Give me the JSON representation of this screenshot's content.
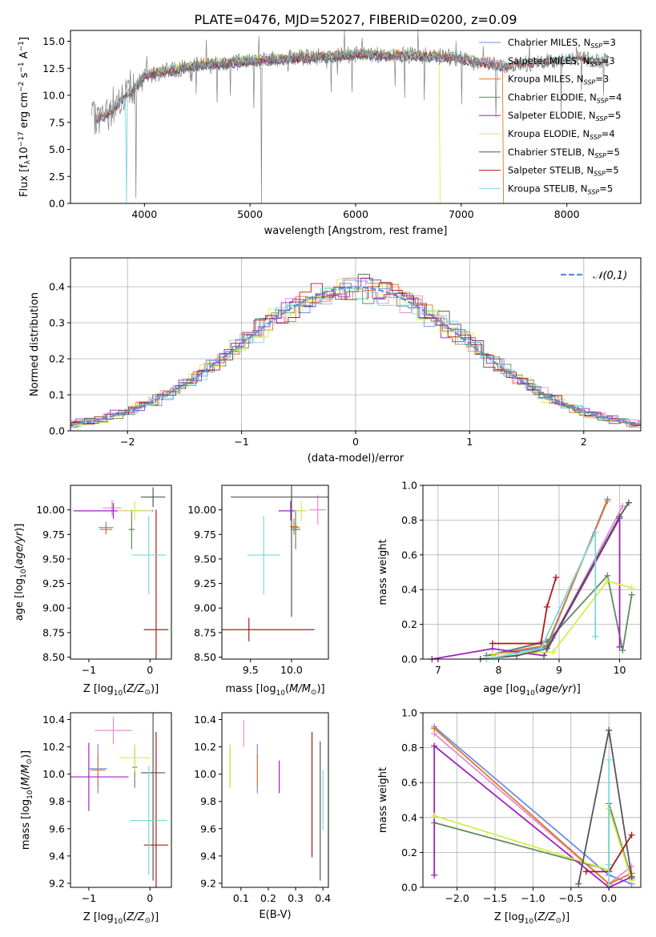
{
  "figure_title": "PLATE=0476, MJD=52027, FIBERID=0200, z=0.09",
  "colors": {
    "chabrier_miles": "#6a8ee8",
    "salpeter_miles": "#e58cd6",
    "kroupa_miles": "#e0782a",
    "chabrier_elodie": "#5f8a5f",
    "salpeter_elodie": "#a020c0",
    "kroupa_elodie": "#d8ec4a",
    "chabrier_stelib": "#555555",
    "salpeter_stelib": "#b01818",
    "kroupa_stelib": "#7ad8dc",
    "data": "#808080",
    "normal": "#5b8fd6",
    "grid": "#b0b0b0"
  },
  "chart_data": [
    {
      "id": "spectrum",
      "type": "line",
      "title": "PLATE=0476, MJD=52027, FIBERID=0200, z=0.09",
      "xlabel": "wavelength [Angstrom, rest frame]",
      "ylabel": "Flux [f_λ10^-17 erg cm^-2 s^-1 A^-1]",
      "xlim": [
        3300,
        8700
      ],
      "ylim": [
        0,
        16
      ],
      "xticks": [
        4000,
        5000,
        6000,
        7000,
        8000
      ],
      "yticks": [
        0.0,
        2.5,
        5.0,
        7.5,
        10.0,
        12.5,
        15.0
      ],
      "grid": false,
      "legend_position": "right",
      "continuum": {
        "x": [
          3500,
          3600,
          3700,
          3800,
          3900,
          4000,
          4200,
          4500,
          4800,
          5000,
          5200,
          5500,
          5800,
          6000,
          6200,
          6500,
          6800,
          7000,
          7200,
          7400,
          7600,
          7800,
          8000,
          8200,
          8400
        ],
        "y": [
          7.8,
          8.0,
          8.6,
          9.8,
          10.5,
          11.8,
          12.2,
          12.8,
          13.0,
          13.2,
          13.3,
          13.5,
          13.6,
          13.8,
          13.7,
          13.7,
          13.6,
          13.4,
          13.0,
          12.7,
          12.9,
          13.1,
          13.3,
          13.3,
          13.2
        ]
      },
      "legend": [
        {
          "label": "Chabrier MILES",
          "n": "3",
          "color_key": "chabrier_miles"
        },
        {
          "label": "Salpeter MILES",
          "n": "3",
          "color_key": "salpeter_miles"
        },
        {
          "label": "Kroupa MILES",
          "n": "3",
          "color_key": "kroupa_miles"
        },
        {
          "label": "Chabrier ELODIE",
          "n": "4",
          "color_key": "chabrier_elodie"
        },
        {
          "label": "Salpeter ELODIE",
          "n": "5",
          "color_key": "salpeter_elodie"
        },
        {
          "label": "Kroupa ELODIE",
          "n": "4",
          "color_key": "kroupa_elodie"
        },
        {
          "label": "Chabrier STELIB",
          "n": "5",
          "color_key": "chabrier_stelib"
        },
        {
          "label": "Salpeter STELIB",
          "n": "5",
          "color_key": "salpeter_stelib"
        },
        {
          "label": "Kroupa STELIB",
          "n": "5",
          "color_key": "kroupa_stelib"
        }
      ]
    },
    {
      "id": "residuals",
      "type": "area",
      "xlabel": "(data-model)/error",
      "ylabel": "Normed distribution",
      "xlim": [
        -2.5,
        2.5
      ],
      "ylim": [
        0,
        0.48
      ],
      "xticks": [
        -2,
        -1,
        0,
        1,
        2
      ],
      "yticks": [
        0.0,
        0.1,
        0.2,
        0.3,
        0.4
      ],
      "grid": true,
      "legend_position": "top-right",
      "legend": [
        {
          "label": "𝒩(0,1)",
          "color_key": "normal"
        }
      ],
      "bin_width": 0.1
    },
    {
      "id": "age_vs_Z",
      "type": "scatter",
      "xlabel": "Z [log10(Z/Z⊙)]",
      "ylabel": "age [log10(age/yr)]",
      "xlim": [
        -1.3,
        0.35
      ],
      "ylim": [
        8.48,
        10.25
      ],
      "xticks": [
        -1,
        0
      ],
      "yticks": [
        8.5,
        8.75,
        9.0,
        9.25,
        9.5,
        9.75,
        10.0
      ],
      "grid": false,
      "points": [
        {
          "color_key": "chabrier_miles",
          "x": -0.72,
          "y": 9.82,
          "xerr": 0.12,
          "yerr": 0.06
        },
        {
          "color_key": "salpeter_miles",
          "x": -0.62,
          "y": 10.02,
          "xerr": 0.15,
          "yerr": 0.08
        },
        {
          "color_key": "kroupa_miles",
          "x": -0.72,
          "y": 9.8,
          "xerr": 0.1,
          "yerr": 0.05
        },
        {
          "color_key": "chabrier_elodie",
          "x": -0.3,
          "y": 9.8,
          "xerr": 0.05,
          "yerr": 0.2
        },
        {
          "color_key": "salpeter_elodie",
          "x": -0.6,
          "y": 9.99,
          "xerr": 0.65,
          "yerr": 0.08
        },
        {
          "color_key": "kroupa_elodie",
          "x": -0.25,
          "y": 9.99,
          "xerr": 0.28,
          "yerr": 0.1
        },
        {
          "color_key": "chabrier_stelib",
          "x": 0.05,
          "y": 10.13,
          "xerr": 0.2,
          "yerr": 0.1
        },
        {
          "color_key": "salpeter_stelib",
          "x": 0.1,
          "y": 8.78,
          "xerr": 0.2,
          "yerr": 1.22
        },
        {
          "color_key": "kroupa_stelib",
          "x": -0.02,
          "y": 9.54,
          "xerr": 0.28,
          "yerr": 0.4
        }
      ]
    },
    {
      "id": "age_vs_mass",
      "type": "scatter",
      "xlabel": "mass [log10(M/M⊙)]",
      "ylabel": "",
      "xlim": [
        9.15,
        10.45
      ],
      "ylim": [
        8.48,
        10.25
      ],
      "xticks": [
        9.5,
        10.0
      ],
      "yticks": [
        8.5,
        8.75,
        9.0,
        9.25,
        9.5,
        9.75,
        10.0
      ],
      "grid": false,
      "points": [
        {
          "color_key": "chabrier_miles",
          "x": 10.05,
          "y": 9.82,
          "xerr": 0.05,
          "yerr": 0.05
        },
        {
          "color_key": "salpeter_miles",
          "x": 10.32,
          "y": 10.0,
          "xerr": 0.1,
          "yerr": 0.15
        },
        {
          "color_key": "kroupa_miles",
          "x": 10.03,
          "y": 9.83,
          "xerr": 0.05,
          "yerr": 0.08
        },
        {
          "color_key": "chabrier_elodie",
          "x": 10.05,
          "y": 9.8,
          "xerr": 0.06,
          "yerr": 0.2
        },
        {
          "color_key": "salpeter_elodie",
          "x": 9.99,
          "y": 9.99,
          "xerr": 0.15,
          "yerr": 0.1
        },
        {
          "color_key": "kroupa_elodie",
          "x": 10.12,
          "y": 9.99,
          "xerr": 0.08,
          "yerr": 0.1
        },
        {
          "color_key": "chabrier_stelib",
          "x": 10.0,
          "y": 10.13,
          "xerr": 0.74,
          "yerr": 1.22
        },
        {
          "color_key": "salpeter_stelib",
          "x": 9.48,
          "y": 8.78,
          "xerr": 0.8,
          "yerr": 0.12
        },
        {
          "color_key": "kroupa_stelib",
          "x": 9.66,
          "y": 9.54,
          "xerr": 0.2,
          "yerr": 0.4
        }
      ]
    },
    {
      "id": "weight_vs_age",
      "type": "line",
      "xlabel": "age [log10(age/yr)]",
      "ylabel": "mass weight",
      "xlim": [
        6.75,
        10.35
      ],
      "ylim": [
        0,
        1.0
      ],
      "xticks": [
        7,
        8,
        9,
        10
      ],
      "yticks": [
        0.0,
        0.2,
        0.4,
        0.6,
        0.8,
        1.0
      ],
      "grid": true,
      "series": [
        {
          "color_key": "chabrier_miles",
          "x": [
            7.8,
            8.8,
            9.8
          ],
          "y": [
            0.02,
            0.07,
            0.92
          ]
        },
        {
          "color_key": "salpeter_miles",
          "x": [
            7.9,
            8.9,
            10.05
          ],
          "y": [
            0.02,
            0.12,
            0.88
          ]
        },
        {
          "color_key": "kroupa_miles",
          "x": [
            7.8,
            8.8,
            9.8
          ],
          "y": [
            0.02,
            0.08,
            0.91
          ]
        },
        {
          "color_key": "chabrier_elodie",
          "x": [
            7.8,
            8.8,
            9.8,
            10.05,
            10.2
          ],
          "y": [
            0.02,
            0.1,
            0.48,
            0.05,
            0.37
          ]
        },
        {
          "color_key": "salpeter_elodie",
          "x": [
            6.9,
            7.9,
            8.75,
            10.0,
            10.0
          ],
          "y": [
            0.0,
            0.06,
            0.02,
            0.81,
            0.07
          ]
        },
        {
          "color_key": "kroupa_elodie",
          "x": [
            7.9,
            8.9,
            9.8,
            10.2
          ],
          "y": [
            0.03,
            0.04,
            0.45,
            0.41
          ]
        },
        {
          "color_key": "chabrier_stelib",
          "x": [
            7.7,
            8.3,
            8.8,
            10.0,
            10.15
          ],
          "y": [
            0.0,
            0.02,
            0.06,
            0.82,
            0.9
          ]
        },
        {
          "color_key": "salpeter_stelib",
          "x": [
            7.9,
            8.7,
            8.8,
            8.95
          ],
          "y": [
            0.09,
            0.09,
            0.3,
            0.47
          ]
        },
        {
          "color_key": "kroupa_stelib",
          "x": [
            7.8,
            8.7,
            9.6,
            9.6
          ],
          "y": [
            0.0,
            0.06,
            0.73,
            0.13
          ]
        }
      ]
    },
    {
      "id": "mass_vs_Z",
      "type": "scatter",
      "xlabel": "Z [log10(Z/Z⊙)]",
      "ylabel": "mass [log10(M/M⊙)]",
      "xlim": [
        -1.3,
        0.35
      ],
      "ylim": [
        9.17,
        10.45
      ],
      "xticks": [
        -1,
        0
      ],
      "yticks": [
        9.2,
        9.4,
        9.6,
        9.8,
        10.0,
        10.2,
        10.4
      ],
      "grid": false,
      "points": [
        {
          "color_key": "chabrier_miles",
          "x": -0.85,
          "y": 10.04,
          "xerr": 0.15,
          "yerr": 0.18
        },
        {
          "color_key": "salpeter_miles",
          "x": -0.6,
          "y": 10.32,
          "xerr": 0.3,
          "yerr": 0.1
        },
        {
          "color_key": "kroupa_miles",
          "x": -0.85,
          "y": 10.03,
          "xerr": 0.12,
          "yerr": 0.12
        },
        {
          "color_key": "chabrier_elodie",
          "x": -0.25,
          "y": 10.05,
          "xerr": 0.04,
          "yerr": 0.15
        },
        {
          "color_key": "salpeter_elodie",
          "x": -1.0,
          "y": 9.98,
          "xerr": 0.65,
          "yerr": 0.25
        },
        {
          "color_key": "kroupa_elodie",
          "x": -0.25,
          "y": 10.12,
          "xerr": 0.25,
          "yerr": 0.1
        },
        {
          "color_key": "chabrier_stelib",
          "x": 0.05,
          "y": 10.01,
          "xerr": 0.2,
          "yerr": 0.79
        },
        {
          "color_key": "salpeter_stelib",
          "x": 0.1,
          "y": 9.48,
          "xerr": 0.2,
          "yerr": 0.83
        },
        {
          "color_key": "kroupa_stelib",
          "x": -0.02,
          "y": 9.66,
          "xerr": 0.3,
          "yerr": 0.4
        }
      ]
    },
    {
      "id": "mass_vs_ebv",
      "type": "scatter",
      "xlabel": "E(B-V)",
      "ylabel": "",
      "xlim": [
        0.03,
        0.42
      ],
      "ylim": [
        9.17,
        10.45
      ],
      "xticks": [
        0.1,
        0.2,
        0.3,
        0.4
      ],
      "yticks": [
        9.2,
        9.4,
        9.6,
        9.8,
        10.0,
        10.2,
        10.4
      ],
      "grid": false,
      "points": [
        {
          "color_key": "chabrier_miles",
          "x": 0.16,
          "y": 10.04,
          "xerr": 0,
          "yerr": 0.18
        },
        {
          "color_key": "salpeter_miles",
          "x": 0.11,
          "y": 10.3,
          "xerr": 0,
          "yerr": 0.1
        },
        {
          "color_key": "kroupa_miles",
          "x": 0.16,
          "y": 10.03,
          "xerr": 0,
          "yerr": 0.12
        },
        {
          "color_key": "chabrier_elodie",
          "x": 0.06,
          "y": 10.05,
          "xerr": 0,
          "yerr": 0.15
        },
        {
          "color_key": "salpeter_elodie",
          "x": 0.24,
          "y": 9.98,
          "xerr": 0,
          "yerr": 0.12
        },
        {
          "color_key": "kroupa_elodie",
          "x": 0.06,
          "y": 10.06,
          "xerr": 0,
          "yerr": 0.16
        },
        {
          "color_key": "chabrier_stelib",
          "x": 0.39,
          "y": 9.73,
          "xerr": 0,
          "yerr": 0.51
        },
        {
          "color_key": "salpeter_stelib",
          "x": 0.36,
          "y": 9.85,
          "xerr": 0,
          "yerr": 0.46
        },
        {
          "color_key": "kroupa_stelib",
          "x": 0.4,
          "y": 9.81,
          "xerr": 0,
          "yerr": 0.22
        }
      ]
    },
    {
      "id": "weight_vs_Z",
      "type": "line",
      "xlabel": "Z [log10(Z/Z⊙)]",
      "ylabel": "mass weight",
      "xlim": [
        -2.45,
        0.42
      ],
      "ylim": [
        0,
        1.0
      ],
      "xticks": [
        -2.0,
        -1.5,
        -1.0,
        -0.5,
        0.0
      ],
      "yticks": [
        0.0,
        0.2,
        0.4,
        0.6,
        0.8,
        1.0
      ],
      "grid": true,
      "series": [
        {
          "color_key": "chabrier_miles",
          "x": [
            -2.3,
            0.0,
            0.3
          ],
          "y": [
            0.92,
            0.07,
            0.02
          ]
        },
        {
          "color_key": "salpeter_miles",
          "x": [
            -2.3,
            0.0,
            0.3
          ],
          "y": [
            0.88,
            0.02,
            0.12
          ]
        },
        {
          "color_key": "kroupa_miles",
          "x": [
            -2.3,
            0.0,
            0.3
          ],
          "y": [
            0.91,
            0.02,
            0.08
          ]
        },
        {
          "color_key": "chabrier_elodie",
          "x": [
            -2.3,
            0.0,
            0.0,
            0.3
          ],
          "y": [
            0.37,
            0.1,
            0.48,
            0.05
          ]
        },
        {
          "color_key": "salpeter_elodie",
          "x": [
            -2.3,
            -2.3,
            0.0,
            0.3
          ],
          "y": [
            0.07,
            0.81,
            0.0,
            0.06
          ]
        },
        {
          "color_key": "kroupa_elodie",
          "x": [
            -2.3,
            0.0,
            0.0,
            0.3
          ],
          "y": [
            0.41,
            0.1,
            0.45,
            0.04
          ]
        },
        {
          "color_key": "chabrier_stelib",
          "x": [
            -0.4,
            0.0,
            0.3
          ],
          "y": [
            0.02,
            0.9,
            0.06
          ]
        },
        {
          "color_key": "salpeter_stelib",
          "x": [
            -0.3,
            0.0,
            0.3
          ],
          "y": [
            0.09,
            0.09,
            0.3
          ]
        },
        {
          "color_key": "kroupa_stelib",
          "x": [
            0.0,
            0.0,
            0.0
          ],
          "y": [
            0.13,
            0.73,
            0.0
          ]
        }
      ]
    }
  ]
}
